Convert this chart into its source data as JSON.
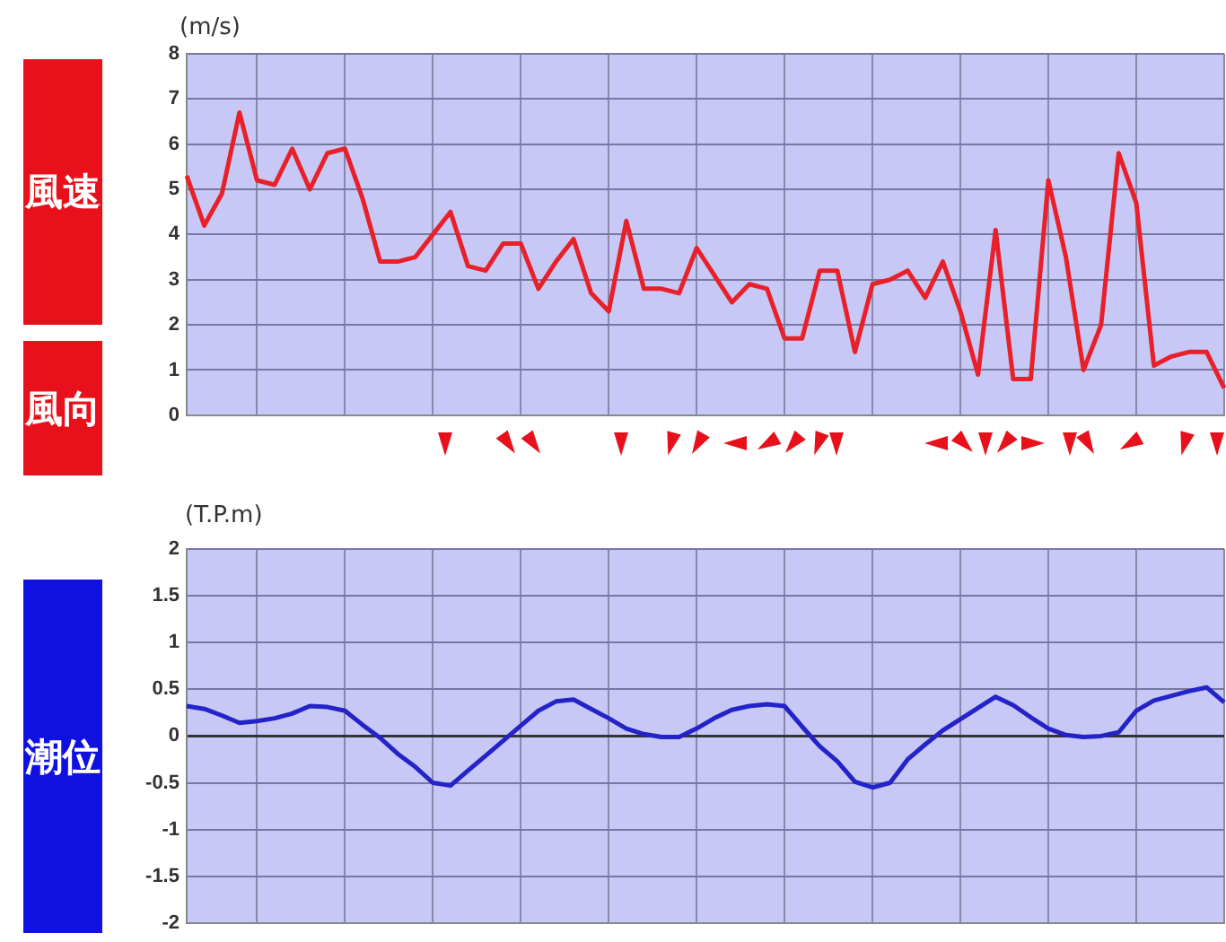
{
  "chart_data": [
    {
      "type": "line",
      "ylabel": "風速",
      "annotations": [
        "(m/s)",
        "風向"
      ],
      "categories": [
        null,
        null,
        null,
        null,
        null,
        null,
        null,
        null,
        null,
        null,
        null,
        null,
        null,
        null,
        null,
        null,
        null,
        null,
        null,
        null,
        null,
        null,
        null,
        null,
        null,
        null,
        null,
        null,
        null,
        null,
        null,
        null,
        null,
        null,
        null,
        null,
        null,
        null,
        null,
        null,
        null,
        null,
        null,
        null,
        null,
        null,
        null,
        null,
        null,
        null,
        null,
        null,
        null,
        null,
        null,
        null,
        null,
        null,
        null,
        null
      ],
      "series": [
        {
          "color": "#e8202a",
          "values": [
            5.3,
            4.2,
            4.9,
            6.7,
            5.2,
            5.1,
            5.9,
            5.0,
            5.8,
            5.9,
            4.8,
            3.4,
            3.4,
            3.5,
            4.0,
            4.5,
            3.3,
            3.2,
            3.8,
            3.8,
            2.8,
            3.4,
            3.9,
            2.7,
            2.3,
            4.3,
            2.8,
            2.8,
            2.7,
            3.7,
            3.1,
            2.5,
            2.9,
            2.8,
            1.7,
            1.7,
            3.2,
            3.2,
            1.4,
            2.9,
            3.0,
            3.2,
            2.6,
            3.4,
            2.3,
            0.9,
            4.1,
            0.8,
            0.8,
            5.2,
            3.5,
            1.0,
            2.0,
            5.8,
            4.7,
            1.1,
            1.3,
            1.4,
            1.4,
            0.6
          ]
        }
      ],
      "ylim": [
        0,
        8
      ],
      "yticks": [
        0,
        1,
        2,
        3,
        4,
        5,
        6,
        7,
        8
      ],
      "grid": true,
      "marker": "none",
      "legend": false,
      "tick_labels": "y"
    },
    {
      "type": "line",
      "ylabel": "潮位",
      "annotations": [
        "(T.P.m)"
      ],
      "categories": [
        null,
        null,
        null,
        null,
        null,
        null,
        null,
        null,
        null,
        null,
        null,
        null,
        null,
        null,
        null,
        null,
        null,
        null,
        null,
        null,
        null,
        null,
        null,
        null,
        null,
        null,
        null,
        null,
        null,
        null,
        null,
        null,
        null,
        null,
        null,
        null,
        null,
        null,
        null,
        null,
        null,
        null,
        null,
        null,
        null,
        null,
        null,
        null,
        null,
        null,
        null,
        null,
        null,
        null,
        null,
        null,
        null,
        null,
        null,
        null
      ],
      "series": [
        {
          "color": "#2323c8",
          "values": [
            0.32,
            0.29,
            0.22,
            0.14,
            0.16,
            0.19,
            0.24,
            0.32,
            0.31,
            0.27,
            0.12,
            -0.02,
            -0.19,
            -0.33,
            -0.5,
            -0.53,
            -0.37,
            -0.21,
            -0.05,
            0.11,
            0.27,
            0.37,
            0.39,
            0.29,
            0.19,
            0.08,
            0.02,
            -0.01,
            -0.01,
            0.08,
            0.19,
            0.28,
            0.32,
            0.34,
            0.32,
            0.1,
            -0.11,
            -0.27,
            -0.49,
            -0.55,
            -0.5,
            -0.25,
            -0.09,
            0.06,
            0.18,
            0.3,
            0.42,
            0.33,
            0.2,
            0.08,
            0.01,
            -0.01,
            0,
            0.04,
            0.27,
            0.38,
            0.43,
            0.48,
            0.52,
            0.36
          ]
        }
      ],
      "ylim": [
        -2,
        2
      ],
      "yticks": [
        -2,
        -1.5,
        -1,
        -0.5,
        0,
        0.5,
        1,
        1.5,
        2
      ],
      "grid": true,
      "marker": "none",
      "legend": false,
      "tick_labels": "y"
    }
  ]
}
